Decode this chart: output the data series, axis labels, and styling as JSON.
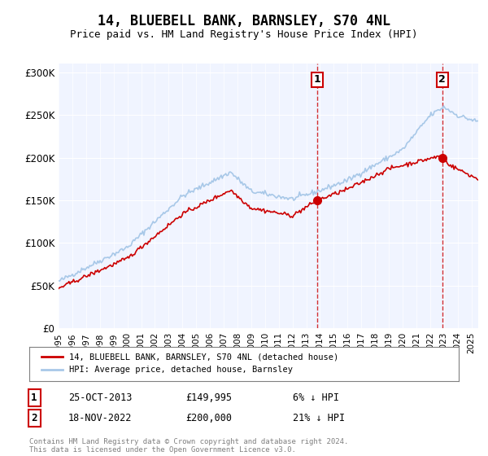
{
  "title": "14, BLUEBELL BANK, BARNSLEY, S70 4NL",
  "subtitle": "Price paid vs. HM Land Registry's House Price Index (HPI)",
  "sale1_date": "25-OCT-2013",
  "sale1_price": 149995,
  "sale1_label": "6% ↓ HPI",
  "sale2_date": "18-NOV-2022",
  "sale2_price": 200000,
  "sale2_label": "21% ↓ HPI",
  "sale1_x": 2013.81,
  "sale2_x": 2022.88,
  "ylabel_ticks": [
    0,
    50000,
    100000,
    150000,
    200000,
    250000,
    300000
  ],
  "ylabel_labels": [
    "£0",
    "£50K",
    "£100K",
    "£150K",
    "£200K",
    "£250K",
    "£300K"
  ],
  "xmin": 1995.0,
  "xmax": 2025.5,
  "ymin": 0,
  "ymax": 310000,
  "hpi_color": "#a8c8e8",
  "sale_color": "#cc0000",
  "vline_color": "#cc0000",
  "plot_bg": "#f0f4ff",
  "legend_label1": "14, BLUEBELL BANK, BARNSLEY, S70 4NL (detached house)",
  "legend_label2": "HPI: Average price, detached house, Barnsley",
  "footer": "Contains HM Land Registry data © Crown copyright and database right 2024.\nThis data is licensed under the Open Government Licence v3.0."
}
